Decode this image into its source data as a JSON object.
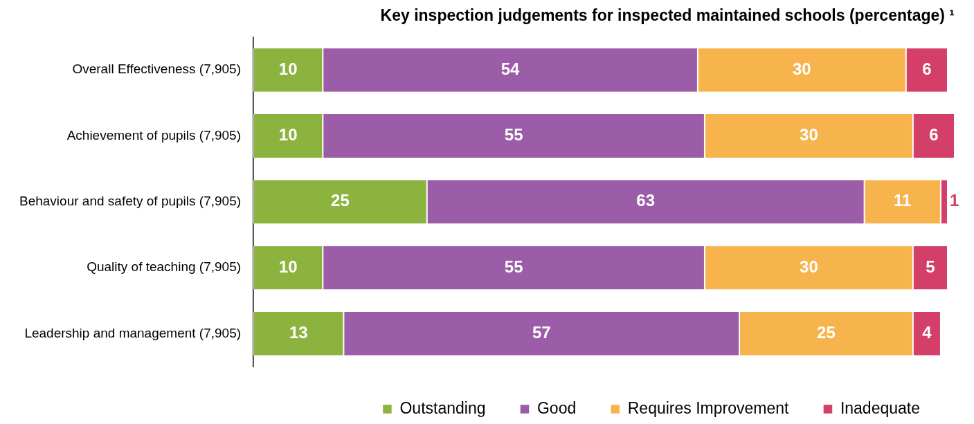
{
  "chart_data": {
    "type": "bar",
    "orientation": "horizontal",
    "stacked": true,
    "title": "Key inspection judgements for inspected maintained schools (percentage) ¹",
    "categories": [
      "Overall Effectiveness (7,905)",
      "Achievement of pupils (7,905)",
      "Behaviour and safety of pupils (7,905)",
      "Quality of teaching (7,905)",
      "Leadership and management (7,905)"
    ],
    "series": [
      {
        "name": "Outstanding",
        "color": "#8db33f",
        "values": [
          10,
          10,
          25,
          10,
          13
        ]
      },
      {
        "name": "Good",
        "color": "#9b5ca8",
        "values": [
          54,
          55,
          63,
          55,
          57
        ]
      },
      {
        "name": "Requires Improvement",
        "color": "#f8b44c",
        "values": [
          30,
          30,
          11,
          30,
          25
        ]
      },
      {
        "name": "Inadequate",
        "color": "#d43f6a",
        "values": [
          6,
          6,
          1,
          5,
          4
        ]
      }
    ],
    "xlim": [
      0,
      101
    ],
    "tick_labels": "y",
    "grid": false,
    "legend": "bottom",
    "data_labels": true
  }
}
